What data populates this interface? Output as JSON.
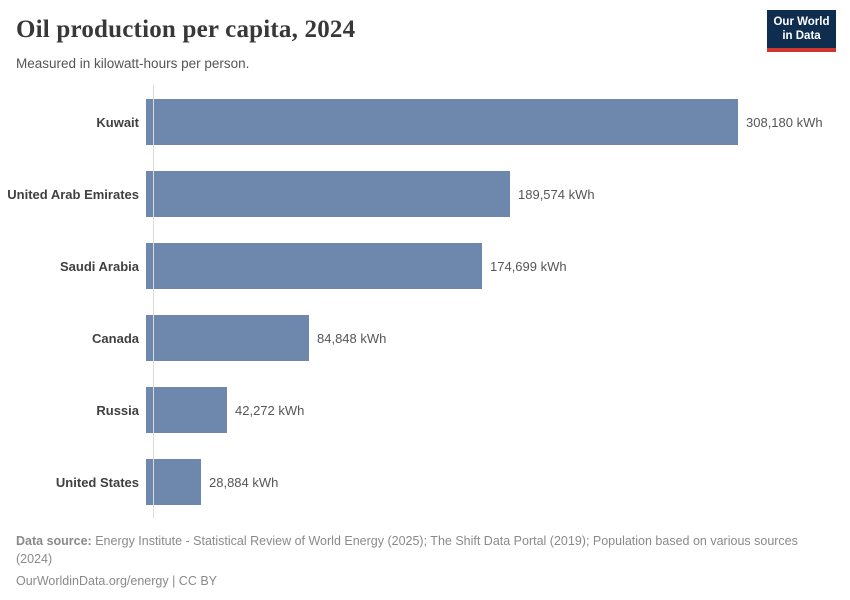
{
  "header": {
    "title": "Oil production per capita, 2024",
    "subtitle": "Measured in kilowatt-hours per person.",
    "logo": {
      "line1": "Our World",
      "line2": "in Data"
    }
  },
  "chart_data": {
    "type": "bar",
    "orientation": "horizontal",
    "title": "Oil production per capita, 2024",
    "subtitle": "Measured in kilowatt-hours per person.",
    "unit": "kWh",
    "categories": [
      "Kuwait",
      "United Arab Emirates",
      "Saudi Arabia",
      "Canada",
      "Russia",
      "United States"
    ],
    "values": [
      308180,
      189574,
      174699,
      84848,
      42272,
      28884
    ],
    "value_labels": [
      "308,180 kWh",
      "189,574 kWh",
      "174,699 kWh",
      "84,848 kWh",
      "42,272 kWh",
      "28,884 kWh"
    ],
    "xlim": [
      0,
      308180
    ],
    "grid": false,
    "legend": "none"
  },
  "colors": {
    "bar": "#6d87ad",
    "axis_line": "#dadada",
    "logo_navy": "#0f2e4f",
    "logo_red": "#d0352f",
    "title_text": "#383838",
    "subtitle_text": "#555555",
    "footer_text": "#8a8a8a"
  },
  "footer": {
    "source_label": "Data source:",
    "source_text": " Energy Institute - Statistical Review of World Energy (2025); The Shift Data Portal (2019); Population based on various sources (2024)",
    "link_text": "OurWorldinData.org/energy | CC BY"
  }
}
